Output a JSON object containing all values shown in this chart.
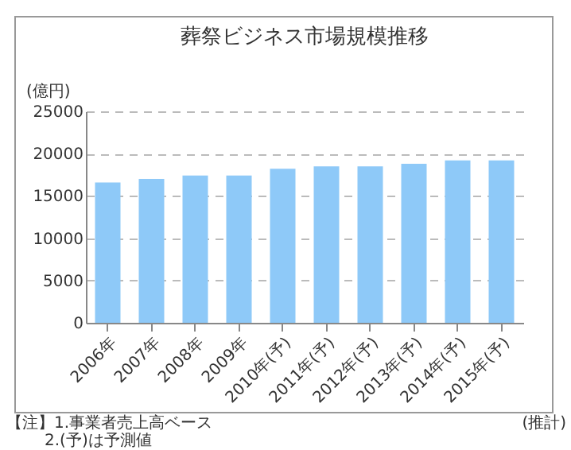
{
  "chart_data": {
    "type": "bar",
    "title": "葬祭ビジネス市場規模推移",
    "ylabel": "(億円)",
    "categories": [
      "2006年",
      "2007年",
      "2008年",
      "2009年",
      "2010年(予)",
      "2011年(予)",
      "2012年(予)",
      "2013年(予)",
      "2014年(予)",
      "2015年(予)"
    ],
    "values": [
      16600,
      17000,
      17400,
      17400,
      18200,
      18500,
      18500,
      18800,
      19200,
      19200
    ],
    "color": "#8ec9f8",
    "ylim": [
      0,
      25000
    ],
    "yticks": [
      0,
      5000,
      10000,
      15000,
      20000,
      25000
    ],
    "grid": "y",
    "annotations": [
      "【注】1.事業者売上高ベース",
      "2.(予)は予測値",
      "(推計)"
    ]
  }
}
